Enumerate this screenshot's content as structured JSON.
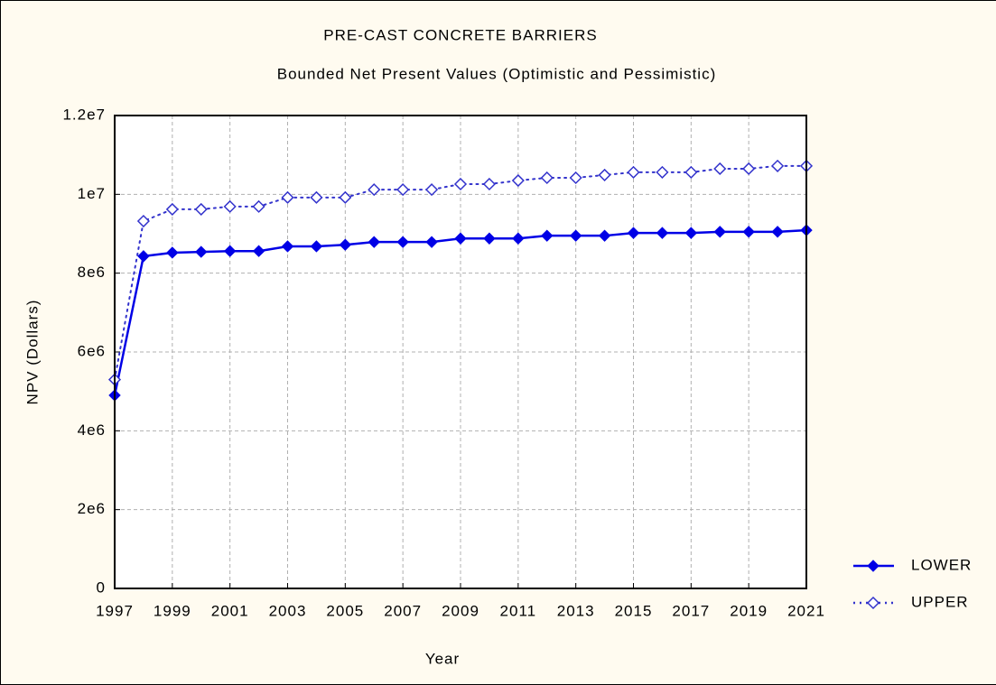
{
  "chart_data": {
    "type": "line",
    "title": "PRE-CAST CONCRETE BARRIERS",
    "subtitle": "Bounded Net Present Values (Optimistic and Pessimistic)",
    "x_label": "Year",
    "y_label": "NPV (Dollars)",
    "x": [
      1997,
      1998,
      1999,
      2000,
      2001,
      2002,
      2003,
      2004,
      2005,
      2006,
      2007,
      2008,
      2009,
      2010,
      2011,
      2012,
      2013,
      2014,
      2015,
      2016,
      2017,
      2018,
      2019,
      2020,
      2021
    ],
    "series": [
      {
        "name": "LOWER",
        "color": "#0000e6",
        "marker": "filled-diamond",
        "line_style": "solid",
        "values": [
          4900000,
          8430000,
          8520000,
          8540000,
          8560000,
          8560000,
          8680000,
          8680000,
          8720000,
          8790000,
          8790000,
          8790000,
          8880000,
          8880000,
          8880000,
          8950000,
          8950000,
          8950000,
          9020000,
          9020000,
          9020000,
          9050000,
          9050000,
          9050000,
          9090000
        ]
      },
      {
        "name": "UPPER",
        "color": "#3333cc",
        "marker": "hollow-diamond",
        "line_style": "dotted",
        "values": [
          5300000,
          9320000,
          9620000,
          9620000,
          9690000,
          9690000,
          9920000,
          9920000,
          9920000,
          10120000,
          10120000,
          10120000,
          10260000,
          10260000,
          10350000,
          10420000,
          10420000,
          10490000,
          10560000,
          10560000,
          10560000,
          10650000,
          10650000,
          10720000,
          10720000
        ]
      }
    ],
    "xlim": [
      1997,
      2021
    ],
    "xticks": [
      1997,
      1999,
      2001,
      2003,
      2005,
      2007,
      2009,
      2011,
      2013,
      2015,
      2017,
      2019,
      2021
    ],
    "ylim": [
      0,
      12000000
    ],
    "yticks": [
      0,
      {
        "value": 2000000,
        "label": "2e6"
      },
      {
        "value": 4000000,
        "label": "4e6"
      },
      {
        "value": 6000000,
        "label": "6e6"
      },
      {
        "value": 8000000,
        "label": "8e6"
      },
      {
        "value": 10000000,
        "label": "1e7"
      },
      {
        "value": 12000000,
        "label": "1.2e7"
      }
    ],
    "grid": true,
    "legend": "right"
  }
}
